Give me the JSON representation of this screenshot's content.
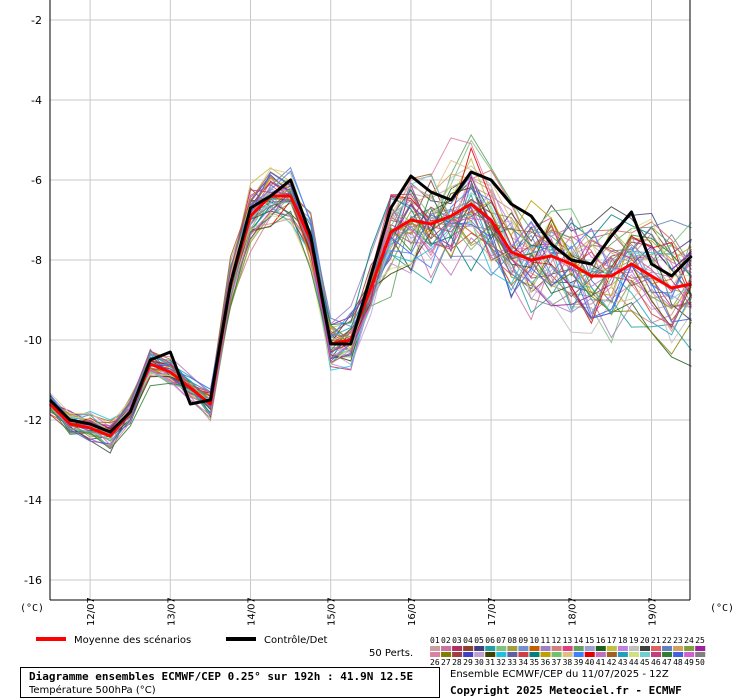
{
  "chart_data": {
    "type": "line",
    "title": "Diagramme ensembles ECMWF/CEP 0.25° sur 192h : 41.9N 12.5E",
    "subtitle": "Température 500hPa (°C)",
    "ylabel_left": "(°C)",
    "ylabel_right": "(°C)",
    "ylim": [
      -16.5,
      -1.5
    ],
    "yticks": [
      -2,
      -4,
      -6,
      -8,
      -10,
      -12,
      -14,
      -16
    ],
    "x_day_labels": [
      "12/07",
      "13/07",
      "14/07",
      "15/07",
      "16/07",
      "17/07",
      "18/07",
      "19/07"
    ],
    "x_step_hours": 6,
    "x_start": "11/07 12Z",
    "grid": true,
    "legend_position": "bottom",
    "series": [
      {
        "name": "Moyenne des scénarios",
        "color": "#ff0000",
        "values": [
          -11.6,
          -12.1,
          -12.2,
          -12.4,
          -11.8,
          -10.6,
          -10.8,
          -11.2,
          -11.6,
          -8.6,
          -6.9,
          -6.4,
          -6.4,
          -7.5,
          -10.1,
          -10.0,
          -8.7,
          -7.3,
          -7.0,
          -7.1,
          -6.9,
          -6.6,
          -7.0,
          -7.8,
          -8.0,
          -7.9,
          -8.1,
          -8.4,
          -8.4,
          -8.1,
          -8.4,
          -8.7,
          -8.6
        ]
      },
      {
        "name": "Contrôle/Det",
        "color": "#000000",
        "values": [
          -11.5,
          -12.0,
          -12.1,
          -12.3,
          -11.8,
          -10.5,
          -10.3,
          -11.6,
          -11.5,
          -8.6,
          -6.7,
          -6.4,
          -6.0,
          -7.4,
          -10.1,
          -10.1,
          -8.4,
          -6.7,
          -5.9,
          -6.3,
          -6.5,
          -5.8,
          -6.0,
          -6.6,
          -6.9,
          -7.6,
          -8.0,
          -8.1,
          -7.4,
          -6.8,
          -8.1,
          -8.4,
          -7.9
        ]
      }
    ],
    "members_label": "50 Perts.",
    "member_count": 50
  },
  "info": {
    "run": "Ensemble ECMWF/CEP du 11/07/2025 - 12Z",
    "copyright": "Copyright 2025 Meteociel.fr - ECMWF"
  },
  "legend": {
    "mean_label": "Moyenne des scénarios",
    "control_label": "Contrôle/Det"
  },
  "member_colors": [
    "#c8a0a0",
    "#d070a0",
    "#b03060",
    "#8c4030",
    "#404080",
    "#20a0a0",
    "#80c080",
    "#a0a040",
    "#7090d0",
    "#c06000",
    "#a080c0",
    "#d08080",
    "#e04080",
    "#60a060",
    "#a0a0d0",
    "#206020",
    "#c0c040",
    "#c080e0",
    "#c0c0c0",
    "#404040",
    "#e06060",
    "#6080c0",
    "#d0a060",
    "#80a040",
    "#a020a0",
    "#e080a0",
    "#808000",
    "#a04040",
    "#4040c0",
    "#c0a0d0",
    "#404000",
    "#20c0e0",
    "#6060a0",
    "#d04040",
    "#008080",
    "#c0a000",
    "#70c070",
    "#e0c080",
    "#4080ff",
    "#e00000",
    "#c070c0",
    "#a06020",
    "#20a0c0",
    "#d0e080",
    "#70d0d0",
    "#c04080",
    "#308030",
    "#4060e0",
    "#d060d0",
    "#808080"
  ]
}
